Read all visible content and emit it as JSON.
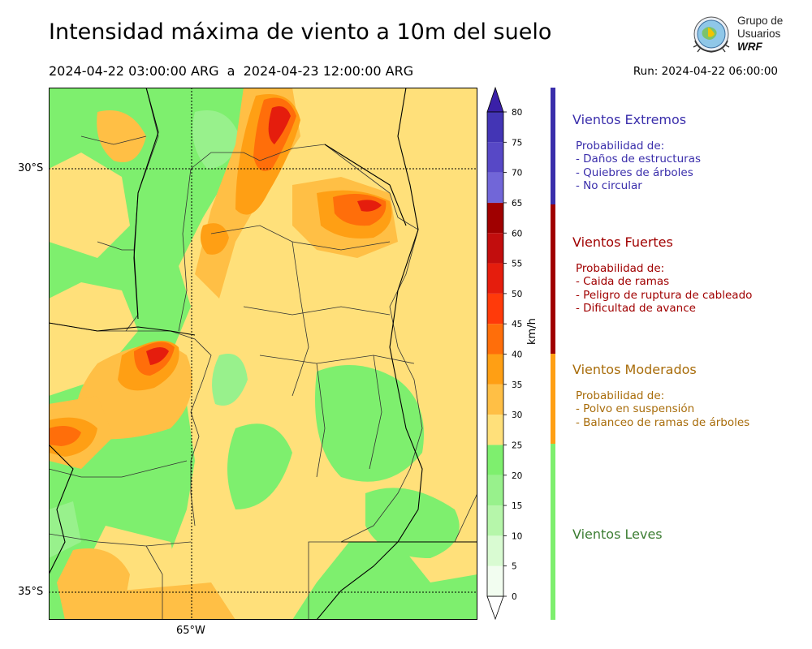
{
  "title": "Intensidad máxima de viento a 10m del suelo",
  "period": "2024-04-22 03:00:00 ARG  a  2024-04-23 12:00:00 ARG",
  "run": "Run: 2024-04-22 06:00:00",
  "logo": {
    "line1": "Grupo de",
    "line2": "Usuarios",
    "line3": "WRF"
  },
  "map": {
    "lat_labels": [
      "30°S",
      "35°S"
    ],
    "lon_labels": [
      "65°W"
    ]
  },
  "colorbar": {
    "unit": "km/h",
    "ticks": [
      "0",
      "5",
      "10",
      "15",
      "20",
      "25",
      "30",
      "35",
      "40",
      "45",
      "50",
      "55",
      "60",
      "65",
      "70",
      "75",
      "80"
    ],
    "colors": [
      "#f2fdf0",
      "#d9fbd2",
      "#b6f6aa",
      "#98f18c",
      "#7eef6e",
      "#ffe07a",
      "#ffbf45",
      "#ff9f14",
      "#ff6e0a",
      "#ff3a0a",
      "#e51d0d",
      "#c20d0d",
      "#a00000",
      "#7166d8",
      "#5748c6",
      "#4335b5"
    ],
    "colors_note": ""
  },
  "categories": [
    {
      "title": "Vientos Extremos",
      "color": "#3a2eab",
      "lines": [
        "Probabilidad de:",
        "- Daños de estructuras",
        "- Quiebres de árboles",
        "- No circular"
      ]
    },
    {
      "title": "Vientos Fuertes",
      "color": "#a00000",
      "lines": [
        "Probabilidad de:",
        "- Caida de ramas",
        "- Peligro de ruptura de cableado",
        "- Dificultad de avance"
      ]
    },
    {
      "title": "Vientos Moderados",
      "color": "#a86c0a",
      "lines": [
        "Probabilidad de:",
        "- Polvo en suspensión",
        "- Balanceo de ramas de árboles"
      ]
    },
    {
      "title": "Vientos Leves",
      "color": "#3c7d32",
      "lines": []
    }
  ]
}
